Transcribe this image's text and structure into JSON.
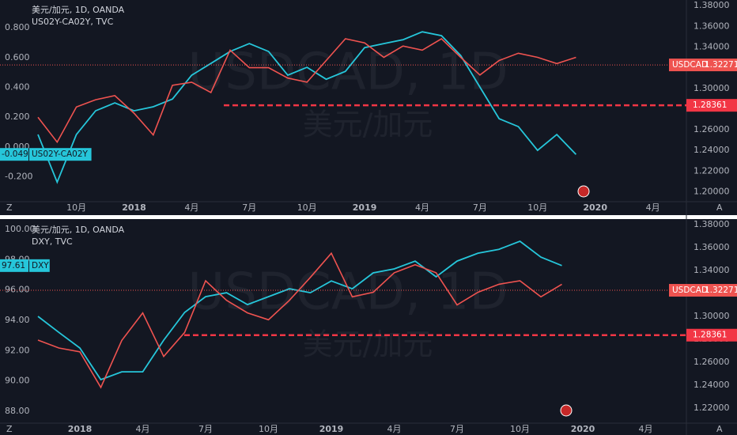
{
  "chart_data": [
    {
      "type": "line",
      "legend_lines": [
        "美元/加元, 1D, OANDA",
        "US02Y-CA02Y, TVC"
      ],
      "watermark": [
        "USDCAD, 1D",
        "美元/加元"
      ],
      "buttons": [
        "Z",
        "A"
      ],
      "categories": [
        null,
        null,
        "10月",
        null,
        null,
        "2018",
        null,
        null,
        "4月",
        null,
        null,
        "7月",
        null,
        null,
        "10月",
        null,
        null,
        "2019",
        null,
        null,
        "4月",
        null,
        null,
        "7月",
        null,
        null,
        "10月",
        null,
        null,
        "2020",
        null,
        null,
        "4月"
      ],
      "series": [
        {
          "name": "US02Y-CA02Y",
          "color": "#26c6da",
          "last": -0.049,
          "values": [
            0.084,
            -0.235,
            0.084,
            0.243,
            0.296,
            0.243,
            0.27,
            0.322,
            0.482,
            0.561,
            0.641,
            0.694,
            0.641,
            0.482,
            0.535,
            0.455,
            0.508,
            0.667,
            0.694,
            0.72,
            0.773,
            0.747,
            0.614,
            0.402,
            0.19,
            0.137,
            -0.022,
            0.084,
            -0.049,
            null,
            null,
            null,
            null
          ]
        },
        {
          "name": "USDCAD",
          "color": "#ef5350",
          "axis": "y2",
          "last": 1.32271,
          "values": [
            1.272,
            1.248,
            1.282,
            1.289,
            1.293,
            1.276,
            1.255,
            1.303,
            1.306,
            1.296,
            1.337,
            1.32,
            1.32,
            1.31,
            1.306,
            1.327,
            1.348,
            1.344,
            1.33,
            1.341,
            1.337,
            1.348,
            1.33,
            1.313,
            1.327,
            1.334,
            1.33,
            1.324,
            1.33,
            null,
            null,
            null,
            null
          ]
        }
      ],
      "level": 1.28361,
      "ylim": [
        -0.366,
        0.986
      ],
      "yticks": [
        {
          "value": 0.8,
          "label": "0.800"
        },
        {
          "value": 0.6,
          "label": "0.600"
        },
        {
          "value": 0.4,
          "label": "0.400"
        },
        {
          "value": 0.2,
          "label": "0.200"
        },
        {
          "value": 0,
          "label": "0.000"
        },
        {
          "value": -0.2,
          "label": "-0.200"
        }
      ],
      "y2lim": [
        1.1904,
        1.3855
      ],
      "y2ticks": [
        {
          "value": 1.38,
          "label": "1.38000"
        },
        {
          "value": 1.36,
          "label": "1.36000"
        },
        {
          "value": 1.34,
          "label": "1.34000"
        },
        {
          "value": 1.32,
          "label": "1.32000"
        },
        {
          "value": 1.3,
          "label": "1.30000"
        },
        {
          "value": 1.28,
          "label": "1.28000"
        },
        {
          "value": 1.26,
          "label": "1.26000"
        },
        {
          "value": 1.24,
          "label": "1.24000"
        },
        {
          "value": 1.22,
          "label": "1.22000"
        },
        {
          "value": 1.2,
          "label": "1.20000"
        }
      ]
    },
    {
      "type": "line",
      "legend_lines": [
        "美元/加元, 1D, OANDA",
        "DXY, TVC"
      ],
      "watermark": [
        "USDCAD, 1D",
        "美元/加元"
      ],
      "buttons": [
        "Z",
        "A"
      ],
      "categories": [
        null,
        null,
        "2018",
        null,
        null,
        "4月",
        null,
        null,
        "7月",
        null,
        null,
        "10月",
        null,
        null,
        "2019",
        null,
        null,
        "4月",
        null,
        null,
        "7月",
        null,
        null,
        "10月",
        null,
        null,
        "2020",
        null,
        null,
        "4月"
      ],
      "series": [
        {
          "name": "DXY",
          "color": "#26c6da",
          "last": 97.61,
          "values": [
            94.26,
            93.2,
            92.17,
            90.08,
            90.6,
            90.6,
            92.69,
            94.52,
            95.56,
            95.82,
            95.04,
            95.56,
            96.08,
            95.82,
            96.6,
            96.08,
            97.13,
            97.39,
            97.91,
            96.87,
            97.91,
            98.43,
            98.69,
            99.22,
            98.17,
            97.61,
            null,
            null,
            null,
            null
          ]
        },
        {
          "name": "USDCAD",
          "color": "#ef5350",
          "axis": "y2",
          "last": 1.32271,
          "values": [
            1.2793,
            1.2724,
            1.269,
            1.238,
            1.279,
            1.303,
            1.265,
            1.286,
            1.331,
            1.314,
            1.303,
            1.297,
            1.314,
            1.334,
            1.355,
            1.317,
            1.321,
            1.338,
            1.345,
            1.338,
            1.31,
            1.321,
            1.328,
            1.331,
            1.317,
            1.328,
            null,
            null,
            null,
            null
          ]
        }
      ],
      "level": 1.28361,
      "ylim": [
        87.21,
        100.63
      ],
      "yticks": [
        {
          "value": 100,
          "label": "100.00"
        },
        {
          "value": 98,
          "label": "98.00"
        },
        {
          "value": 96,
          "label": "96.00"
        },
        {
          "value": 94,
          "label": "94.00"
        },
        {
          "value": 92,
          "label": "92.00"
        },
        {
          "value": 90,
          "label": "90.00"
        },
        {
          "value": 88,
          "label": "88.00"
        }
      ],
      "y2lim": [
        1.2069,
        1.3841
      ],
      "y2ticks": [
        {
          "value": 1.38,
          "label": "1.38000"
        },
        {
          "value": 1.36,
          "label": "1.36000"
        },
        {
          "value": 1.34,
          "label": "1.34000"
        },
        {
          "value": 1.32,
          "label": "1.32000"
        },
        {
          "value": 1.3,
          "label": "1.30000"
        },
        {
          "value": 1.28,
          "label": "1.28000"
        },
        {
          "value": 1.26,
          "label": "1.26000"
        },
        {
          "value": 1.24,
          "label": "1.24000"
        },
        {
          "value": 1.22,
          "label": "1.22000"
        }
      ]
    }
  ]
}
